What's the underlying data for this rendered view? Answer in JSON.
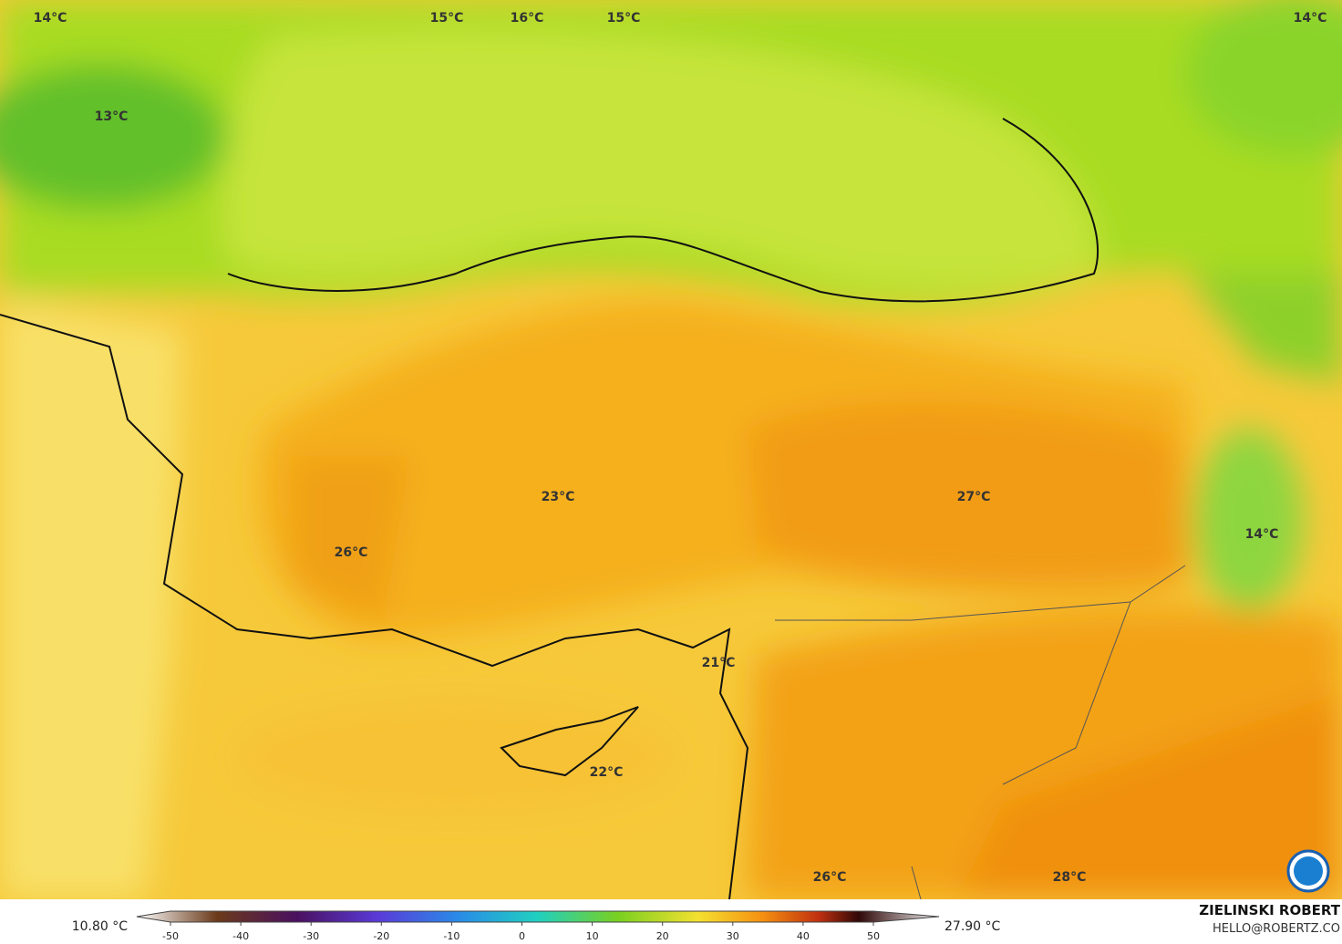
{
  "map_labels": [
    "14°C",
    "15°C",
    "16°C",
    "15°C",
    "14°C",
    "13°C",
    "23°C",
    "27°C",
    "26°C",
    "14°C",
    "21°C",
    "22°C",
    "26°C",
    "28°C"
  ],
  "legend": {
    "min_label": "10.80 °C",
    "max_label": "27.90 °C",
    "ticks": [
      -50,
      -40,
      -30,
      -20,
      -10,
      0,
      10,
      20,
      30,
      40,
      50
    ]
  },
  "credits": {
    "author": "ZIELINSKI ROBERT",
    "contact": "HELLO@ROBERTZ.CO"
  }
}
